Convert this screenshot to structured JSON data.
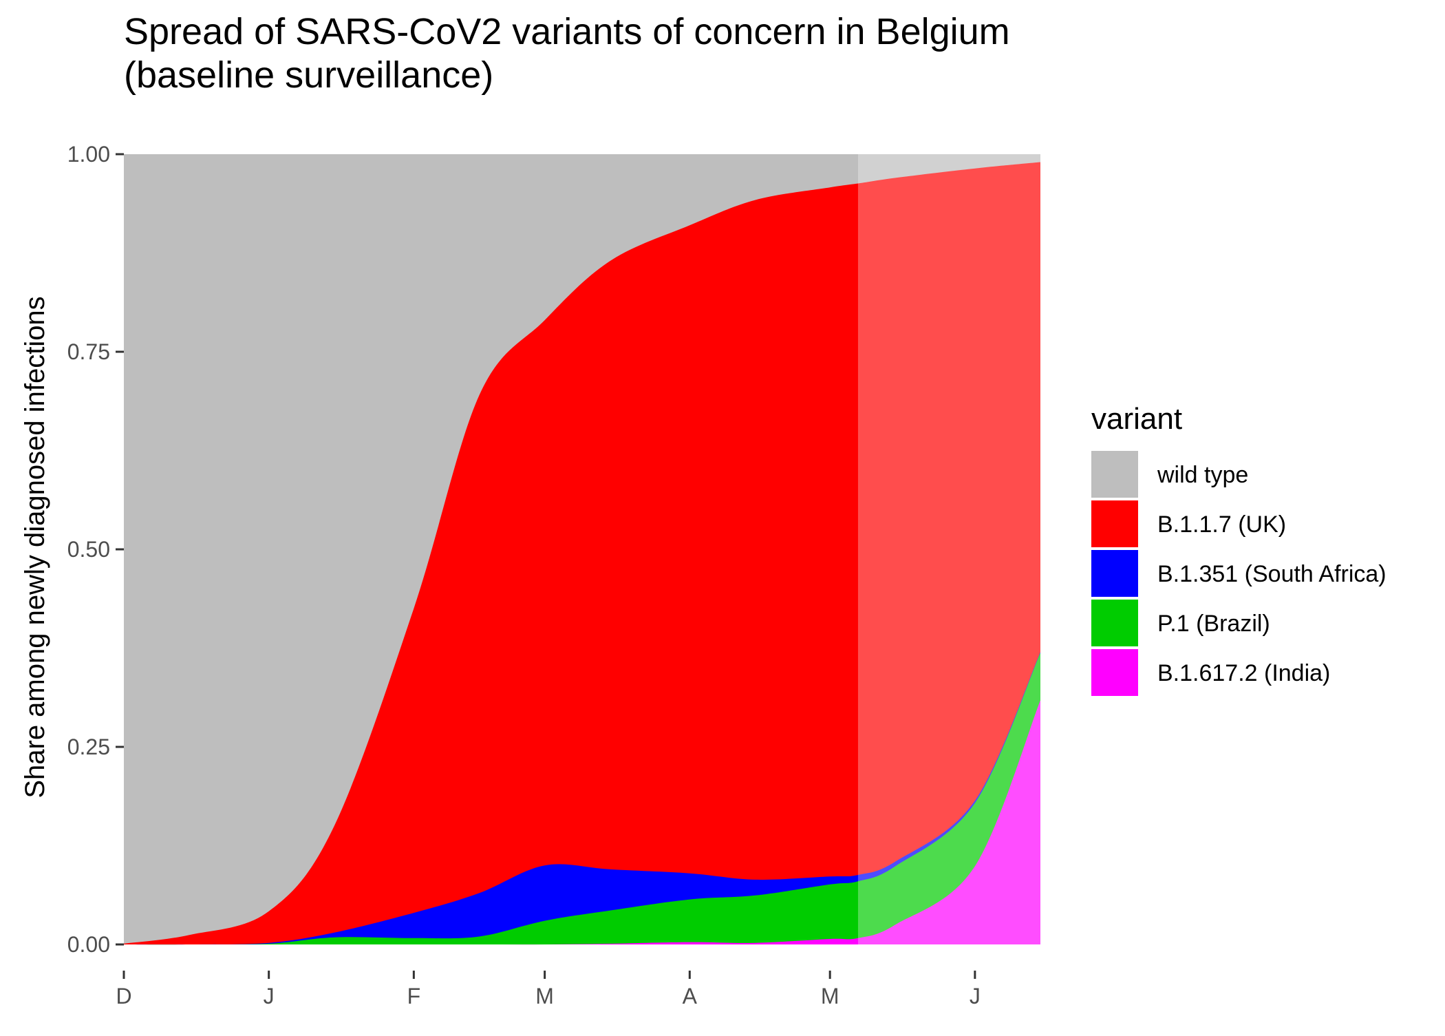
{
  "chart_data": {
    "type": "area",
    "stacked": true,
    "title_line1": "Spread of SARS-CoV2 variants of concern in Belgium",
    "title_line2": "(baseline surveillance)",
    "ylabel": "Share among newly diagnosed infections",
    "xlabel": "",
    "ylim": [
      0,
      1
    ],
    "xlim": [
      "2020-12-01",
      "2021-06-15"
    ],
    "yticks": [
      {
        "value": 0.0,
        "label": "0.00"
      },
      {
        "value": 0.25,
        "label": "0.25"
      },
      {
        "value": 0.5,
        "label": "0.50"
      },
      {
        "value": 0.75,
        "label": "0.75"
      },
      {
        "value": 1.0,
        "label": "1.00"
      }
    ],
    "xticks": [
      {
        "date": "2020-12-01",
        "label": "D"
      },
      {
        "date": "2021-01-01",
        "label": "J"
      },
      {
        "date": "2021-02-01",
        "label": "F"
      },
      {
        "date": "2021-03-01",
        "label": "M"
      },
      {
        "date": "2021-04-01",
        "label": "A"
      },
      {
        "date": "2021-05-01",
        "label": "M"
      },
      {
        "date": "2021-06-01",
        "label": "J"
      }
    ],
    "projection_start": "2021-05-07",
    "legend_title": "variant",
    "legend_position": "right",
    "grid": false,
    "x": [
      "2020-12-01",
      "2020-12-15",
      "2021-01-01",
      "2021-01-15",
      "2021-02-01",
      "2021-02-15",
      "2021-03-01",
      "2021-03-15",
      "2021-04-01",
      "2021-04-15",
      "2021-05-01",
      "2021-05-07",
      "2021-05-15",
      "2021-06-01",
      "2021-06-15"
    ],
    "series": [
      {
        "name": "wild type",
        "color": "#BEBEBE",
        "values": [
          0.999,
          0.988,
          0.958,
          0.85,
          0.575,
          0.305,
          0.21,
          0.135,
          0.09,
          0.058,
          0.042,
          0.037,
          0.03,
          0.018,
          0.01
        ]
      },
      {
        "name": "B.1.1.7 (UK)",
        "color": "#FF0000",
        "values": [
          0.001,
          0.012,
          0.04,
          0.135,
          0.385,
          0.63,
          0.69,
          0.77,
          0.82,
          0.86,
          0.872,
          0.875,
          0.865,
          0.8,
          0.62
        ]
      },
      {
        "name": "B.1.351 (South Africa)",
        "color": "#0000FF",
        "values": [
          0.0,
          0.0,
          0.001,
          0.006,
          0.032,
          0.055,
          0.07,
          0.052,
          0.033,
          0.02,
          0.01,
          0.008,
          0.006,
          0.003,
          0.001
        ]
      },
      {
        "name": "P.1 (Brazil)",
        "color": "#00CC00",
        "values": [
          0.0,
          0.0,
          0.001,
          0.009,
          0.008,
          0.01,
          0.03,
          0.042,
          0.054,
          0.06,
          0.069,
          0.072,
          0.074,
          0.08,
          0.06
        ]
      },
      {
        "name": "B.1.617.2 (India)",
        "color": "#FF00FF",
        "values": [
          0.0,
          0.0,
          0.0,
          0.0,
          0.0,
          0.0,
          0.0,
          0.001,
          0.003,
          0.002,
          0.007,
          0.008,
          0.025,
          0.099,
          0.309
        ]
      }
    ]
  }
}
